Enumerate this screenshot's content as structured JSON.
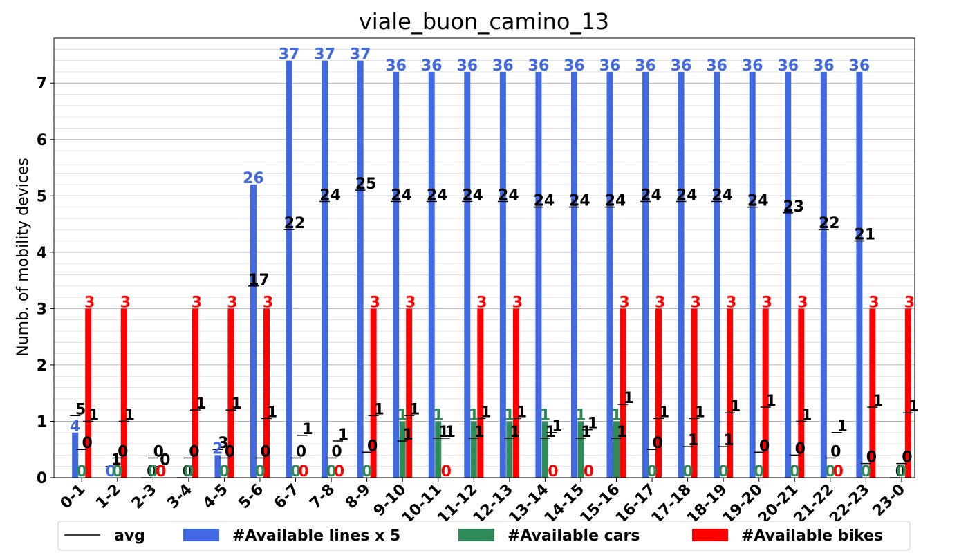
{
  "chart_data": {
    "type": "bar",
    "title": "viale_buon_camino_13",
    "ylabel": "Numb. of mobility devices",
    "xlabel": "",
    "ylim": [
      0,
      7.8
    ],
    "yticks": [
      "0",
      "1",
      "2",
      "3",
      "4",
      "5",
      "6",
      "7"
    ],
    "grid": true,
    "legend_position": "bottom",
    "categories": [
      "0-1",
      "1-2",
      "2-3",
      "3-4",
      "4-5",
      "5-6",
      "6-7",
      "7-8",
      "8-9",
      "9-10",
      "10-11",
      "11-12",
      "12-13",
      "13-14",
      "14-15",
      "15-16",
      "16-17",
      "17-18",
      "18-19",
      "19-20",
      "20-21",
      "21-22",
      "22-23",
      "23-0"
    ],
    "series": [
      {
        "name": "#Available lines x 5",
        "color": "#4169e1",
        "values": [
          0.8,
          0,
          0,
          0,
          0.4,
          5.2,
          7.4,
          7.4,
          7.4,
          7.2,
          7.2,
          7.2,
          7.2,
          7.2,
          7.2,
          7.2,
          7.2,
          7.2,
          7.2,
          7.2,
          7.2,
          7.2,
          7.2,
          0
        ],
        "labels": [
          "4",
          "0",
          "",
          "",
          "2",
          "26",
          "37",
          "37",
          "37",
          "36",
          "36",
          "36",
          "36",
          "36",
          "36",
          "36",
          "36",
          "36",
          "36",
          "36",
          "36",
          "36",
          "36",
          ""
        ],
        "avg": [
          1.1,
          0.2,
          0,
          0,
          0.5,
          3.4,
          4.4,
          4.9,
          5.1,
          4.9,
          4.9,
          4.9,
          4.9,
          4.8,
          4.8,
          4.8,
          4.9,
          4.9,
          4.9,
          4.8,
          4.7,
          4.4,
          4.2,
          0
        ],
        "avg_labels": [
          "5",
          "1",
          "0",
          "0",
          "3",
          "17",
          "22",
          "24",
          "25",
          "24",
          "24",
          "24",
          "24",
          "24",
          "24",
          "24",
          "24",
          "24",
          "24",
          "24",
          "23",
          "22",
          "21",
          "0"
        ]
      },
      {
        "name": "#Available cars",
        "color": "#2e8b57",
        "values": [
          0,
          0,
          0,
          0,
          0,
          0,
          0,
          0,
          0,
          1,
          1,
          1,
          1,
          1,
          1,
          1,
          0,
          0,
          0,
          0,
          0,
          0,
          0,
          0
        ],
        "labels": [
          "0",
          "0",
          "0",
          "0",
          "0",
          "0",
          "0",
          "0",
          "0",
          "1",
          "1",
          "1",
          "1",
          "1",
          "1",
          "1",
          "0",
          "0",
          "0",
          "0",
          "0",
          "0",
          "0",
          "0"
        ],
        "avg": [
          0.5,
          0.35,
          0.35,
          0.35,
          0.35,
          0.35,
          0.35,
          0.35,
          0.45,
          0.65,
          0.7,
          0.7,
          0.7,
          0.7,
          0.7,
          0.7,
          0.5,
          0.55,
          0.55,
          0.45,
          0.4,
          0.35,
          0.25,
          0.25
        ],
        "avg_labels": [
          "0",
          "0",
          "0",
          "0",
          "0",
          "0",
          "0",
          "0",
          "0",
          "1",
          "1",
          "1",
          "1",
          "1",
          "1",
          "1",
          "0",
          "1",
          "1",
          "0",
          "0",
          "0",
          "0",
          "0"
        ]
      },
      {
        "name": "#Available bikes",
        "color": "#ff0000",
        "values": [
          3,
          3,
          0,
          3,
          3,
          3,
          0,
          0,
          3,
          3,
          0,
          3,
          3,
          0,
          0,
          3,
          3,
          3,
          3,
          3,
          3,
          0,
          3,
          3
        ],
        "labels": [
          "3",
          "3",
          "0",
          "3",
          "3",
          "3",
          "0",
          "0",
          "3",
          "3",
          "0",
          "3",
          "3",
          "0",
          "0",
          "3",
          "3",
          "3",
          "3",
          "3",
          "3",
          "0",
          "3",
          "3"
        ],
        "avg": [
          1.0,
          1.0,
          0.2,
          1.2,
          1.2,
          1.05,
          0.75,
          0.65,
          1.1,
          1.1,
          0.7,
          1.05,
          1.05,
          0.8,
          0.85,
          1.3,
          1.05,
          1.05,
          1.15,
          1.25,
          1.0,
          0.8,
          1.25,
          1.15
        ],
        "avg_labels": [
          "1",
          "1",
          "0",
          "1",
          "1",
          "1",
          "1",
          "1",
          "1",
          "1",
          "1",
          "1",
          "1",
          "1",
          "1",
          "1",
          "1",
          "1",
          "1",
          "1",
          "1",
          "1",
          "1",
          "1"
        ]
      }
    ],
    "avg_legend": {
      "name": "avg",
      "color": "#000000"
    }
  }
}
